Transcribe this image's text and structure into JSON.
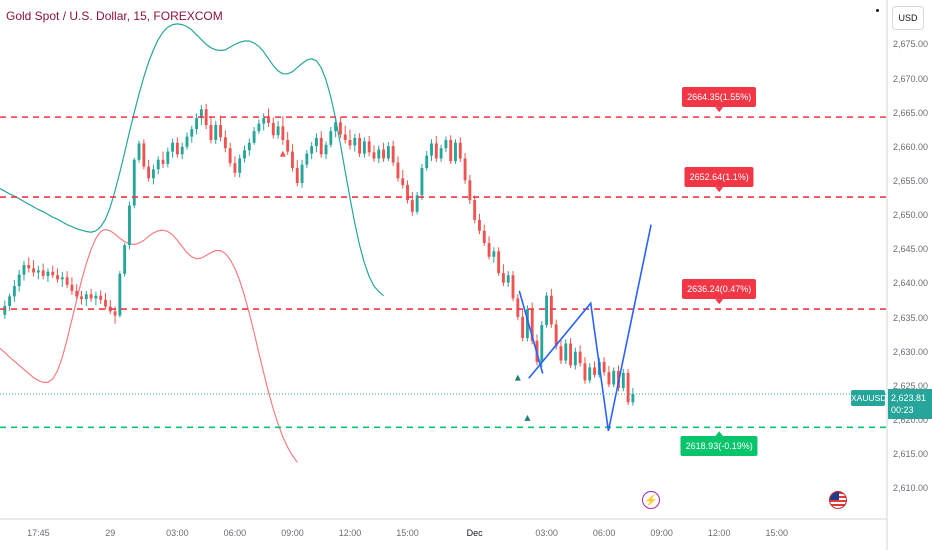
{
  "header": {
    "title": "Gold Spot / U.S. Dollar, 15, FOREXCOM"
  },
  "currency_button": "USD",
  "symbol_tag": "XAUUSD",
  "price_tag": {
    "price": "2,623.81",
    "countdown": "00:23"
  },
  "colors": {
    "up": "#26a69a",
    "down": "#ef5350",
    "upper_band": "#26a69a",
    "lower_band": "#f77c80",
    "level_red": "#f23645",
    "level_green": "#08c56c",
    "pattern": "#2962ff"
  },
  "events": [
    {
      "icon": "lightning-icon"
    },
    {
      "icon": "us-flag-icon"
    }
  ],
  "chart_data": {
    "type": "candlestick",
    "symbol": "XAUUSD",
    "interval": "15",
    "y_ticks": [
      "2,675.00",
      "2,670.00",
      "2,665.00",
      "2,660.00",
      "2,655.00",
      "2,650.00",
      "2,645.00",
      "2,640.00",
      "2,635.00",
      "2,630.00",
      "2,625.00",
      "2,620.00",
      "2,615.00",
      "2,610.00"
    ],
    "y_tick_values": [
      2675,
      2670,
      2665,
      2660,
      2655,
      2650,
      2645,
      2640,
      2635,
      2630,
      2625,
      2620,
      2615,
      2610
    ],
    "ylim": [
      2605.5,
      2681.5
    ],
    "x_ticks": [
      "17:45",
      "29",
      "03:00",
      "06:00",
      "09:00",
      "12:00",
      "15:00",
      "Dec",
      "03:00",
      "06:00",
      "09:00",
      "12:00",
      "15:00"
    ],
    "x_tick_index": [
      8,
      23,
      37,
      49,
      61,
      73,
      85,
      99,
      114,
      126,
      138,
      150,
      162
    ],
    "x_range": [
      0,
      185
    ],
    "levels": [
      {
        "price": 2664.35,
        "label": "2664.35(1.55%)",
        "color": "red",
        "x_index": 150
      },
      {
        "price": 2652.64,
        "label": "2652.64(1.1%)",
        "color": "red",
        "x_index": 150
      },
      {
        "price": 2636.24,
        "label": "2636.24(0.47%)",
        "color": "red",
        "x_index": 150
      },
      {
        "price": 2618.93,
        "label": "2618.93(-0.19%)",
        "color": "green",
        "x_index": 150
      }
    ],
    "current_price": 2623.81,
    "candles": [
      [
        2635.4,
        2637.5,
        2634.8,
        2636.7
      ],
      [
        2636.7,
        2638.5,
        2636.0,
        2638.1
      ],
      [
        2638.1,
        2640.5,
        2637.3,
        2639.6
      ],
      [
        2639.6,
        2642.0,
        2638.8,
        2641.3
      ],
      [
        2641.3,
        2643.3,
        2640.4,
        2642.7
      ],
      [
        2642.7,
        2643.8,
        2641.6,
        2642.2
      ],
      [
        2642.2,
        2643.4,
        2641.0,
        2641.6
      ],
      [
        2641.6,
        2642.6,
        2640.6,
        2641.9
      ],
      [
        2641.9,
        2642.9,
        2640.6,
        2641.1
      ],
      [
        2641.1,
        2642.2,
        2640.2,
        2641.7
      ],
      [
        2641.7,
        2642.6,
        2640.8,
        2641.2
      ],
      [
        2641.2,
        2642.2,
        2640.1,
        2640.6
      ],
      [
        2640.6,
        2641.7,
        2639.5,
        2640.9
      ],
      [
        2640.9,
        2641.8,
        2639.3,
        2639.8
      ],
      [
        2639.8,
        2640.9,
        2638.3,
        2638.9
      ],
      [
        2638.9,
        2639.9,
        2637.7,
        2638.1
      ],
      [
        2638.1,
        2638.9,
        2636.9,
        2637.7
      ],
      [
        2637.7,
        2638.9,
        2636.7,
        2638.4
      ],
      [
        2638.4,
        2639.2,
        2637.3,
        2637.8
      ],
      [
        2637.8,
        2638.8,
        2636.8,
        2638.2
      ],
      [
        2638.2,
        2639.0,
        2637.0,
        2637.6
      ],
      [
        2637.6,
        2638.6,
        2636.2,
        2636.6
      ],
      [
        2636.6,
        2637.6,
        2635.5,
        2635.9
      ],
      [
        2635.9,
        2636.6,
        2634.1,
        2635.3
      ],
      [
        2635.3,
        2641.8,
        2635.0,
        2641.4
      ],
      [
        2641.4,
        2645.9,
        2641.0,
        2645.6
      ],
      [
        2645.6,
        2652.0,
        2645.0,
        2651.4
      ],
      [
        2651.4,
        2658.4,
        2651.0,
        2658.1
      ],
      [
        2658.1,
        2660.9,
        2657.7,
        2660.5
      ],
      [
        2660.5,
        2661.1,
        2656.7,
        2657.1
      ],
      [
        2657.1,
        2658.1,
        2654.9,
        2655.4
      ],
      [
        2655.4,
        2657.4,
        2654.5,
        2656.7
      ],
      [
        2656.7,
        2658.6,
        2656.0,
        2658.1
      ],
      [
        2658.1,
        2659.3,
        2656.9,
        2657.5
      ],
      [
        2657.5,
        2659.9,
        2657.0,
        2659.3
      ],
      [
        2659.3,
        2661.2,
        2658.4,
        2660.6
      ],
      [
        2660.6,
        2661.4,
        2658.4,
        2658.9
      ],
      [
        2658.9,
        2660.6,
        2658.2,
        2660.0
      ],
      [
        2660.0,
        2662.1,
        2659.6,
        2661.5
      ],
      [
        2661.5,
        2663.1,
        2660.6,
        2662.6
      ],
      [
        2662.6,
        2664.9,
        2661.8,
        2664.2
      ],
      [
        2664.2,
        2666.1,
        2663.2,
        2665.5
      ],
      [
        2665.5,
        2666.3,
        2662.6,
        2663.2
      ],
      [
        2663.2,
        2664.5,
        2660.5,
        2661.0
      ],
      [
        2661.0,
        2663.8,
        2660.4,
        2663.2
      ],
      [
        2663.2,
        2664.6,
        2660.8,
        2661.4
      ],
      [
        2661.4,
        2662.4,
        2659.2,
        2659.8
      ],
      [
        2659.8,
        2660.6,
        2657.1,
        2657.6
      ],
      [
        2657.6,
        2658.6,
        2655.6,
        2656.2
      ],
      [
        2656.2,
        2658.9,
        2655.5,
        2658.3
      ],
      [
        2658.3,
        2660.2,
        2657.7,
        2659.5
      ],
      [
        2659.5,
        2661.2,
        2658.7,
        2660.6
      ],
      [
        2660.6,
        2662.9,
        2660.3,
        2662.3
      ],
      [
        2662.3,
        2664.0,
        2661.9,
        2663.4
      ],
      [
        2663.4,
        2664.9,
        2662.4,
        2664.2
      ],
      [
        2664.2,
        2665.6,
        2662.9,
        2663.5
      ],
      [
        2663.5,
        2664.3,
        2661.2,
        2661.7
      ],
      [
        2661.7,
        2663.8,
        2661.2,
        2663.0
      ],
      [
        2663.0,
        2664.5,
        2660.3,
        2661.0
      ],
      [
        2661.0,
        2662.2,
        2658.8,
        2659.3
      ],
      [
        2659.3,
        2660.4,
        2656.4,
        2656.9
      ],
      [
        2656.9,
        2658.1,
        2654.2,
        2654.7
      ],
      [
        2654.7,
        2658.1,
        2654.0,
        2657.4
      ],
      [
        2657.4,
        2659.5,
        2656.9,
        2659.0
      ],
      [
        2659.0,
        2660.7,
        2658.2,
        2660.1
      ],
      [
        2660.1,
        2662.0,
        2659.2,
        2661.3
      ],
      [
        2661.3,
        2662.3,
        2658.4,
        2658.9
      ],
      [
        2658.9,
        2660.8,
        2658.2,
        2660.3
      ],
      [
        2660.3,
        2662.9,
        2659.9,
        2662.3
      ],
      [
        2662.3,
        2664.2,
        2661.4,
        2663.6
      ],
      [
        2663.6,
        2664.4,
        2661.3,
        2661.8
      ],
      [
        2661.8,
        2663.1,
        2660.5,
        2661.0
      ],
      [
        2661.0,
        2662.5,
        2659.6,
        2660.2
      ],
      [
        2660.2,
        2661.9,
        2659.3,
        2661.3
      ],
      [
        2661.3,
        2662.0,
        2658.5,
        2659.0
      ],
      [
        2659.0,
        2661.4,
        2658.4,
        2660.8
      ],
      [
        2660.8,
        2661.6,
        2658.6,
        2659.2
      ],
      [
        2659.2,
        2660.2,
        2657.8,
        2658.3
      ],
      [
        2658.3,
        2660.2,
        2657.6,
        2659.6
      ],
      [
        2659.6,
        2660.6,
        2657.8,
        2658.3
      ],
      [
        2658.3,
        2660.7,
        2657.9,
        2660.1
      ],
      [
        2660.1,
        2660.9,
        2657.2,
        2657.7
      ],
      [
        2657.7,
        2658.6,
        2654.9,
        2655.4
      ],
      [
        2655.4,
        2656.6,
        2653.9,
        2654.4
      ],
      [
        2654.4,
        2655.1,
        2651.7,
        2652.2
      ],
      [
        2652.2,
        2653.4,
        2649.9,
        2650.5
      ],
      [
        2650.5,
        2653.4,
        2650.1,
        2652.9
      ],
      [
        2652.9,
        2657.5,
        2652.2,
        2656.9
      ],
      [
        2656.9,
        2659.4,
        2656.5,
        2658.7
      ],
      [
        2658.7,
        2661.1,
        2657.9,
        2660.5
      ],
      [
        2660.5,
        2661.6,
        2657.8,
        2658.3
      ],
      [
        2658.3,
        2660.3,
        2657.8,
        2659.8
      ],
      [
        2659.8,
        2661.5,
        2659.2,
        2661.0
      ],
      [
        2661.0,
        2661.7,
        2657.5,
        2657.9
      ],
      [
        2657.9,
        2661.1,
        2657.5,
        2660.6
      ],
      [
        2660.6,
        2661.4,
        2657.8,
        2658.3
      ],
      [
        2658.3,
        2659.1,
        2654.6,
        2655.1
      ],
      [
        2655.1,
        2655.9,
        2651.6,
        2652.2
      ],
      [
        2652.2,
        2652.9,
        2648.8,
        2649.3
      ],
      [
        2649.3,
        2650.2,
        2647.2,
        2647.7
      ],
      [
        2647.7,
        2648.6,
        2645.5,
        2645.9
      ],
      [
        2645.9,
        2646.9,
        2643.5,
        2643.9
      ],
      [
        2643.9,
        2645.3,
        2643.0,
        2644.7
      ],
      [
        2644.7,
        2645.3,
        2641.1,
        2641.5
      ],
      [
        2641.5,
        2642.8,
        2639.6,
        2640.1
      ],
      [
        2640.1,
        2641.8,
        2639.5,
        2641.2
      ],
      [
        2641.2,
        2641.8,
        2637.4,
        2637.8
      ],
      [
        2637.8,
        2638.4,
        2634.6,
        2635.1
      ],
      [
        2635.1,
        2636.1,
        2631.5,
        2632.0
      ],
      [
        2632.0,
        2636.8,
        2631.5,
        2636.2
      ],
      [
        2636.2,
        2637.2,
        2631.1,
        2631.6
      ],
      [
        2631.6,
        2632.5,
        2628.0,
        2628.5
      ],
      [
        2628.5,
        2634.5,
        2627.8,
        2633.9
      ],
      [
        2633.9,
        2638.7,
        2633.5,
        2638.2
      ],
      [
        2638.2,
        2639.2,
        2633.5,
        2634.0
      ],
      [
        2634.0,
        2634.7,
        2630.3,
        2630.8
      ],
      [
        2630.8,
        2631.8,
        2628.2,
        2628.7
      ],
      [
        2628.7,
        2631.8,
        2628.2,
        2631.2
      ],
      [
        2631.2,
        2632.0,
        2627.6,
        2628.0
      ],
      [
        2628.0,
        2630.6,
        2627.4,
        2630.0
      ],
      [
        2630.0,
        2630.9,
        2627.8,
        2628.3
      ],
      [
        2628.3,
        2629.2,
        2625.3,
        2625.8
      ],
      [
        2625.8,
        2628.3,
        2625.4,
        2627.7
      ],
      [
        2627.7,
        2628.6,
        2626.2,
        2626.6
      ],
      [
        2626.6,
        2629.1,
        2626.2,
        2628.5
      ],
      [
        2628.5,
        2629.2,
        2626.5,
        2627.0
      ],
      [
        2627.0,
        2627.9,
        2624.8,
        2625.2
      ],
      [
        2625.2,
        2627.7,
        2624.8,
        2627.2
      ],
      [
        2627.2,
        2628.0,
        2624.2,
        2624.7
      ],
      [
        2624.7,
        2627.5,
        2624.2,
        2626.9
      ],
      [
        2626.9,
        2627.5,
        2622.2,
        2622.6
      ],
      [
        2622.6,
        2624.7,
        2622.1,
        2623.8
      ]
    ],
    "upper_band": [
      2653.9,
      2653.5,
      2653.1,
      2652.8,
      2652.4,
      2652.0,
      2651.6,
      2651.2,
      2650.8,
      2650.5,
      2650.1,
      2649.7,
      2649.4,
      2649.0,
      2648.6,
      2648.3,
      2648.0,
      2647.8,
      2647.6,
      2647.5,
      2647.7,
      2648.3,
      2649.4,
      2651.2,
      2653.6,
      2656.3,
      2659.2,
      2662.2,
      2665.0,
      2667.7,
      2670.2,
      2672.4,
      2674.2,
      2675.7,
      2676.8,
      2677.5,
      2677.9,
      2678.0,
      2677.9,
      2677.6,
      2677.1,
      2676.4,
      2675.7,
      2675.0,
      2674.5,
      2674.2,
      2674.1,
      2674.2,
      2674.6,
      2675.0,
      2675.3,
      2675.5,
      2675.5,
      2675.2,
      2674.7,
      2673.9,
      2672.9,
      2671.9,
      2671.1,
      2670.7,
      2670.7,
      2671.0,
      2671.6,
      2672.2,
      2672.7,
      2672.9,
      2672.6,
      2671.6,
      2669.8,
      2667.3,
      2664.1,
      2660.4,
      2656.4,
      2652.5,
      2648.8,
      2645.6,
      2643.0,
      2641.0,
      2639.6,
      2638.8,
      2638.2
    ],
    "lower_band": [
      2630.5,
      2629.9,
      2629.2,
      2628.6,
      2628.0,
      2627.4,
      2626.8,
      2626.2,
      2625.8,
      2625.5,
      2625.5,
      2626.0,
      2627.2,
      2629.2,
      2631.8,
      2634.7,
      2637.6,
      2640.4,
      2642.9,
      2645.0,
      2646.6,
      2647.6,
      2647.9,
      2647.7,
      2647.2,
      2646.6,
      2646.1,
      2645.8,
      2645.7,
      2645.9,
      2646.3,
      2646.9,
      2647.4,
      2647.7,
      2647.8,
      2647.6,
      2647.1,
      2646.3,
      2645.4,
      2644.5,
      2643.9,
      2643.6,
      2643.7,
      2644.1,
      2644.5,
      2644.8,
      2644.8,
      2644.4,
      2643.5,
      2642.2,
      2640.4,
      2638.2,
      2635.6,
      2632.8,
      2629.8,
      2626.9,
      2624.1,
      2621.6,
      2619.4,
      2617.5,
      2616.0,
      2614.8,
      2613.8
    ]
  },
  "pattern_path": {
    "blue_zigzag": [
      [
        110.3,
        2626.1
      ],
      [
        123.2,
        2637.1
      ],
      [
        126.9,
        2618.4
      ],
      [
        135.8,
        2648.6
      ]
    ],
    "blue_short_line": [
      [
        108.3,
        2638.9
      ],
      [
        113.2,
        2626.8
      ]
    ],
    "markers": [
      {
        "index": 108,
        "price": 2626.2
      },
      {
        "index": 110,
        "price": 2620.3
      },
      {
        "index": 59,
        "price": 2659.0
      }
    ]
  }
}
